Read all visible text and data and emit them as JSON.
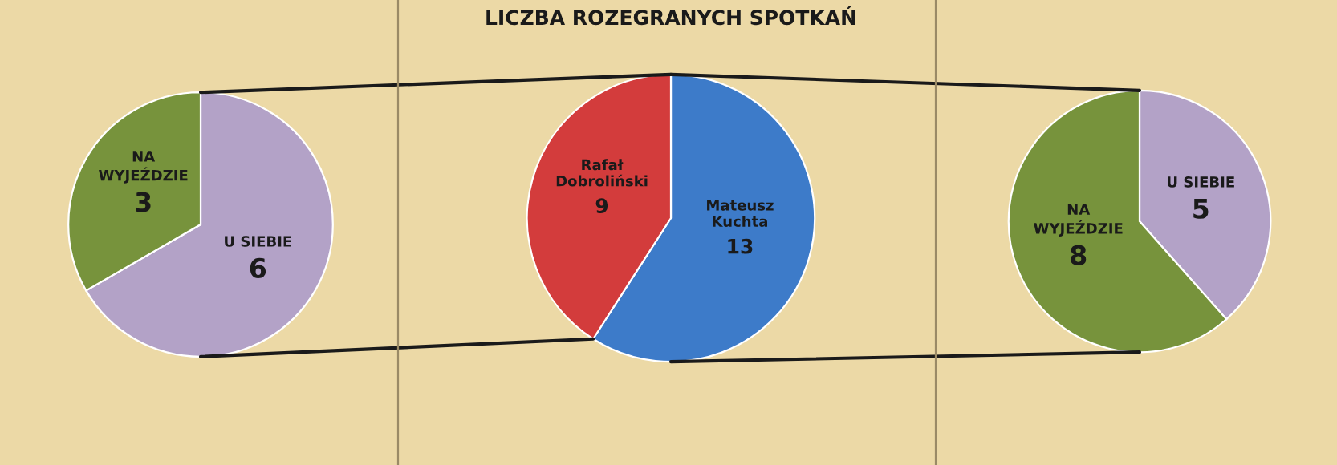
{
  "chart_data": [
    {
      "type": "pie",
      "categories": [
        "U SIEBIE",
        "NA\nWYJEŹDZIE"
      ],
      "values": [
        6,
        3
      ],
      "colors": [
        "#b3a2c7",
        "#77933c"
      ],
      "data_labels": true
    },
    {
      "type": "pie",
      "title": "LICZBA ROZEGRANYCH SPOTKAŃ",
      "categories": [
        "Mateusz\nKuchta",
        "Rafał\nDobroliński"
      ],
      "values": [
        13,
        9
      ],
      "colors": [
        "#3d7bc9",
        "#d33c3c"
      ],
      "data_labels": true
    },
    {
      "type": "pie",
      "categories": [
        "U SIEBIE",
        "NA\nWYJEŹDZIE"
      ],
      "values": [
        5,
        8
      ],
      "colors": [
        "#b3a2c7",
        "#77933c"
      ],
      "data_labels": true
    }
  ]
}
